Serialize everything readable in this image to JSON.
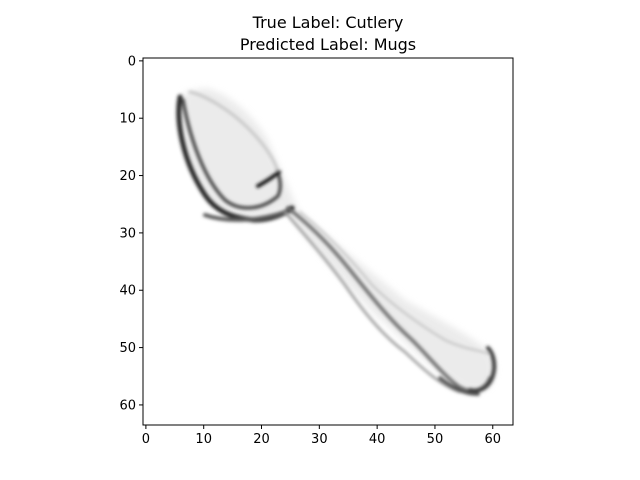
{
  "figure": {
    "title_line1": "True Label: Cutlery",
    "title_line2": "Predicted Label: Mugs"
  },
  "image": {
    "colormap": "gray_r",
    "pixel_grid": [
      64,
      64
    ],
    "subject": "spoon"
  },
  "axes": {
    "x_ticks": [
      "0",
      "10",
      "20",
      "30",
      "40",
      "50",
      "60"
    ],
    "y_ticks": [
      "0",
      "10",
      "20",
      "30",
      "40",
      "50",
      "60"
    ],
    "x_range": [
      -0.5,
      63.5
    ],
    "y_range": [
      63.5,
      -0.5
    ]
  }
}
